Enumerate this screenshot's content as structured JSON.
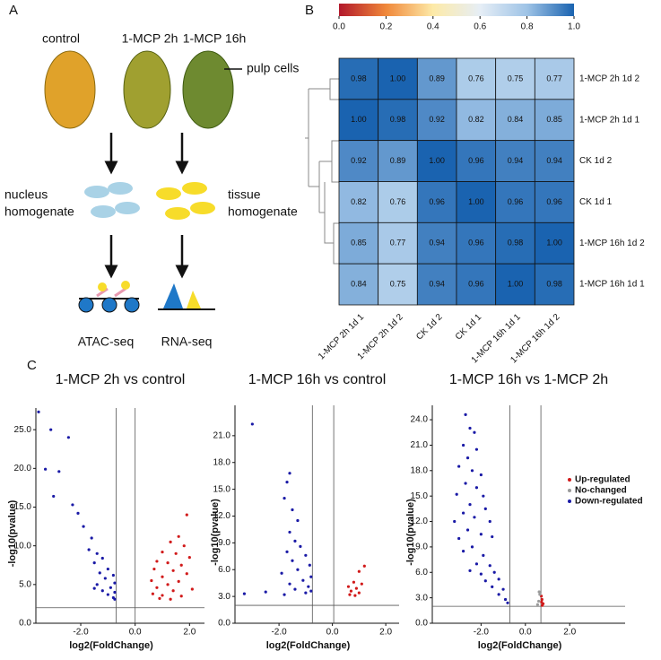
{
  "panel_labels": [
    "A",
    "B",
    "C"
  ],
  "diagram": {
    "samples": [
      "control",
      "1-MCP 2h",
      "1-MCP 16h"
    ],
    "pulp_label": "pulp cells",
    "left_homogenate": [
      "nucleus",
      "homogenate"
    ],
    "right_homogenate": [
      "tissue",
      "homogenate"
    ],
    "methods": [
      "ATAC-seq",
      "RNA-seq"
    ]
  },
  "chart_data": [
    {
      "type": "heatmap",
      "rows": [
        "1-MCP 2h 1d 2",
        "1-MCP 2h 1d 1",
        "CK 1d 2",
        "CK 1d 1",
        "1-MCP 16h 1d 2",
        "1-MCP 16h 1d 1"
      ],
      "columns": [
        "1-MCP 2h 1d 1",
        "1-MCP 2h 1d 2",
        "CK 1d 2",
        "CK 1d 1",
        "1-MCP 16h 1d 1",
        "1-MCP 16h 1d 2"
      ],
      "values": [
        [
          0.98,
          1,
          0.89,
          0.76,
          0.75,
          0.77
        ],
        [
          1,
          0.98,
          0.92,
          0.82,
          0.84,
          0.85
        ],
        [
          0.92,
          0.89,
          1,
          0.96,
          0.94,
          0.94
        ],
        [
          0.82,
          0.76,
          0.96,
          1,
          0.96,
          0.96
        ],
        [
          0.85,
          0.77,
          0.94,
          0.96,
          0.98,
          1
        ],
        [
          0.84,
          0.75,
          0.94,
          0.96,
          1,
          0.98
        ]
      ],
      "value_labels": [
        [
          "0.98",
          "1.00",
          "0.89",
          "0.76",
          "0.75",
          "0.77"
        ],
        [
          "1.00",
          "0.98",
          "0.92",
          "0.82",
          "0.84",
          "0.85"
        ],
        [
          "0.92",
          "0.89",
          "1.00",
          "0.96",
          "0.94",
          "0.94"
        ],
        [
          "0.82",
          "0.76",
          "0.96",
          "1.00",
          "0.96",
          "0.96"
        ],
        [
          "0.85",
          "0.77",
          "0.94",
          "0.96",
          "0.98",
          "1.00"
        ],
        [
          "0.84",
          "0.75",
          "0.94",
          "0.96",
          "1.00",
          "0.98"
        ]
      ],
      "colorscale": [
        "#b2182b",
        "#f0883a",
        "#fdeaa8",
        "#e6eef6",
        "#9ec3e6",
        "#1a63b0"
      ],
      "clim": [
        0,
        1
      ],
      "cticks": [
        {
          "value": 0,
          "label": "0.0"
        },
        0.2,
        0.4,
        0.6,
        0.8,
        {
          "value": 1,
          "label": "1.0"
        }
      ]
    },
    {
      "type": "scatter",
      "title": "1-MCP 2h vs control",
      "x_label": "log2(FoldChange)",
      "y_label": "-log10(pvalue)",
      "xlim": [
        -3.65,
        2.55
      ],
      "ylim": [
        0,
        27.8
      ],
      "xticks": [
        {
          "value": -2,
          "label": "-2.0"
        },
        {
          "value": 0,
          "label": "0.0"
        },
        {
          "value": 2,
          "label": "2.0"
        }
      ],
      "yticks": [
        {
          "value": 0,
          "label": "0.0"
        },
        {
          "value": 5,
          "label": "5.0"
        },
        {
          "value": 10,
          "label": "10.0"
        },
        {
          "value": 15,
          "label": "15.0"
        },
        {
          "value": 20,
          "label": "20.0"
        },
        {
          "value": 25,
          "label": "25.0"
        }
      ],
      "vlines": [
        -0.7,
        0
      ],
      "hline": 2,
      "legend": false,
      "series": [
        {
          "name": "Down-regulated",
          "color": "#1a1aa6",
          "x": [
            -3.55,
            -3.1,
            -2.45,
            -3.3,
            -2.8,
            -3.0,
            -2.3,
            -2.1,
            -1.9,
            -1.6,
            -1.7,
            -1.4,
            -1.2,
            -1.5,
            -1.0,
            -1.3,
            -0.8,
            -1.1,
            -0.75,
            -1.4,
            -0.9,
            -1.2,
            -0.75,
            -1.0,
            -0.8,
            -1.5,
            -0.75
          ],
          "y": [
            27.3,
            25.0,
            24.0,
            19.9,
            19.6,
            16.4,
            15.3,
            14.2,
            12.5,
            11.0,
            9.5,
            9.0,
            8.4,
            7.8,
            7.0,
            6.5,
            6.2,
            5.8,
            5.2,
            5.0,
            4.6,
            4.2,
            4.0,
            3.7,
            3.3,
            4.5,
            3.1
          ]
        },
        {
          "name": "Up-regulated",
          "color": "#d11a1a",
          "x": [
            1.9,
            1.6,
            1.3,
            1.8,
            1.0,
            1.5,
            2.0,
            0.8,
            1.2,
            1.7,
            0.7,
            1.4,
            1.9,
            1.0,
            0.6,
            1.6,
            1.2,
            0.8,
            2.1,
            1.4,
            0.65,
            1.0,
            1.7,
            0.9,
            1.3
          ],
          "y": [
            14.0,
            11.2,
            10.5,
            10.0,
            9.2,
            9.0,
            8.5,
            8.0,
            7.8,
            7.5,
            7.0,
            6.8,
            6.4,
            6.0,
            5.5,
            5.4,
            5.0,
            4.6,
            4.4,
            4.2,
            3.8,
            3.6,
            3.5,
            3.2,
            3.1
          ]
        }
      ]
    },
    {
      "type": "scatter",
      "title": "1-MCP 16h vs control",
      "x_label": "log2(FoldChange)",
      "y_label": "-log10(pvalue)",
      "xlim": [
        -3.65,
        2.5
      ],
      "ylim": [
        0,
        24.4
      ],
      "xticks": [
        {
          "value": -2,
          "label": "-2.0"
        },
        {
          "value": 0,
          "label": "0.0"
        },
        {
          "value": 2,
          "label": "2.0"
        }
      ],
      "yticks": [
        {
          "value": 0,
          "label": "0.0"
        },
        {
          "value": 3,
          "label": "3.0"
        },
        {
          "value": 6,
          "label": "6.0"
        },
        {
          "value": 9,
          "label": "9.0"
        },
        {
          "value": 12,
          "label": "12.0"
        },
        {
          "value": 15,
          "label": "15.0"
        },
        {
          "value": 18,
          "label": "18.0"
        },
        {
          "value": 21,
          "label": "21.0"
        }
      ],
      "vlines": [
        -0.75,
        0.05
      ],
      "hline": 2,
      "legend": false,
      "series": [
        {
          "name": "Down-regulated",
          "color": "#1a1aa6",
          "x": [
            -3.0,
            -1.6,
            -1.7,
            -1.8,
            -1.5,
            -1.3,
            -1.6,
            -1.4,
            -1.2,
            -1.7,
            -1.0,
            -1.5,
            -0.85,
            -1.3,
            -1.9,
            -0.8,
            -1.1,
            -1.6,
            -0.9,
            -1.4,
            -0.8,
            -1.0,
            -2.5,
            -3.3,
            -1.8
          ],
          "y": [
            22.3,
            16.8,
            15.8,
            14.0,
            12.7,
            11.5,
            10.2,
            9.2,
            8.6,
            8.0,
            7.6,
            7.0,
            6.5,
            6.0,
            5.6,
            5.2,
            4.8,
            4.4,
            4.1,
            3.8,
            3.6,
            3.4,
            3.5,
            3.3,
            3.2
          ]
        },
        {
          "name": "Up-regulated",
          "color": "#d11a1a",
          "x": [
            1.2,
            1.0,
            0.8,
            1.1,
            0.6,
            0.9,
            0.7,
            1.0,
            0.65,
            0.85
          ],
          "y": [
            6.4,
            5.8,
            4.6,
            4.4,
            4.1,
            3.9,
            3.6,
            3.4,
            3.2,
            3.1
          ]
        }
      ]
    },
    {
      "type": "scatter",
      "title": "1-MCP 16h vs 1-MCP 2h",
      "x_label": "log2(FoldChange)",
      "y_label": "-log10(pvalue)",
      "xlim": [
        -4.2,
        4.5
      ],
      "ylim": [
        0,
        25.7
      ],
      "xticks": [
        {
          "value": -2,
          "label": "-2.0"
        },
        {
          "value": 0,
          "label": "0.0"
        },
        {
          "value": 2,
          "label": "2.0"
        }
      ],
      "yticks": [
        {
          "value": 0,
          "label": "0.0"
        },
        {
          "value": 3,
          "label": "3.0"
        },
        {
          "value": 6,
          "label": "6.0"
        },
        {
          "value": 9,
          "label": "9.0"
        },
        {
          "value": 12,
          "label": "12.0"
        },
        {
          "value": 15,
          "label": "15.0"
        },
        {
          "value": 18,
          "label": "18.0"
        },
        {
          "value": 21,
          "label": "21.0"
        },
        {
          "value": 24,
          "label": "24.0"
        }
      ],
      "vlines": [
        -0.7,
        0.7
      ],
      "hline": 2,
      "legend": "right",
      "series": [
        {
          "name": "Up-regulated",
          "color": "#d11a1a",
          "x": [
            0.72,
            0.75,
            0.73,
            0.8,
            0.76
          ],
          "y": [
            3.2,
            2.8,
            2.5,
            2.3,
            2.1
          ]
        },
        {
          "name": "No-changed",
          "color": "#9a9a9a",
          "x": [
            0.65,
            0.6,
            0.55,
            0.62
          ],
          "y": [
            3.4,
            2.6,
            2.2,
            3.7
          ]
        },
        {
          "name": "Down-regulated",
          "color": "#1a1aa6",
          "x": [
            -2.7,
            -2.5,
            -2.3,
            -2.8,
            -2.2,
            -2.6,
            -3.0,
            -2.4,
            -2.0,
            -2.7,
            -2.2,
            -3.1,
            -1.9,
            -2.5,
            -2.8,
            -1.8,
            -2.3,
            -3.2,
            -1.6,
            -2.6,
            -2.0,
            -3.0,
            -1.5,
            -2.4,
            -2.8,
            -1.9,
            -2.2,
            -1.6,
            -2.0,
            -1.4,
            -1.8,
            -1.2,
            -1.5,
            -1.0,
            -1.2,
            -0.9,
            -0.8,
            -2.5
          ],
          "y": [
            24.6,
            23.0,
            22.5,
            21.0,
            20.5,
            19.5,
            18.5,
            18.0,
            17.5,
            16.5,
            16.0,
            15.2,
            15.0,
            14.0,
            13.0,
            13.5,
            12.5,
            12.0,
            12.0,
            11.0,
            10.5,
            10.0,
            10.2,
            9.0,
            8.5,
            8.0,
            7.0,
            6.8,
            5.8,
            6.0,
            5.0,
            5.2,
            4.3,
            4.0,
            3.4,
            2.8,
            2.4,
            6.2
          ]
        }
      ]
    }
  ]
}
